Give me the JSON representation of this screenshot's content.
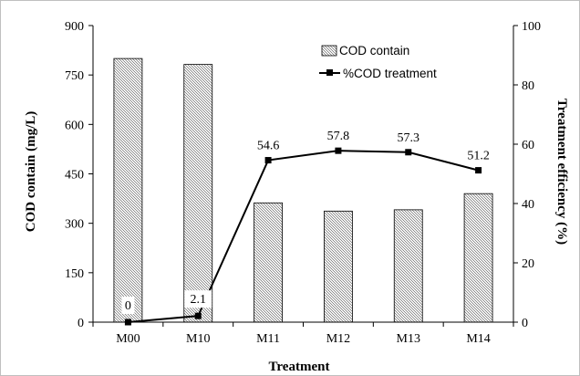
{
  "chart_data": {
    "type": "bar+line",
    "xlabel": "Treatment",
    "ylabel_left": "COD contain (mg/L)",
    "ylabel_right": "Treatment efficiency (%)",
    "categories": [
      "M00",
      "M10",
      "M11",
      "M12",
      "M13",
      "M14"
    ],
    "ylim_left": [
      0,
      900
    ],
    "yticks_left": [
      "0",
      "150",
      "300",
      "450",
      "600",
      "750",
      "900"
    ],
    "ylim_right": [
      0,
      100
    ],
    "yticks_right": [
      "0",
      "20",
      "40",
      "60",
      "80",
      "100"
    ],
    "grid": false,
    "legend_position": "top-right",
    "series": [
      {
        "name": "COD contain",
        "type": "bar",
        "axis": "left",
        "values": [
          800,
          782,
          362,
          337,
          341,
          390
        ]
      },
      {
        "name": "%COD treatment",
        "type": "line",
        "axis": "right",
        "values": [
          0,
          2.1,
          54.6,
          57.8,
          57.3,
          51.2
        ],
        "labels": [
          "0",
          "2.1",
          "54.6",
          "57.8",
          "57.3",
          "51.2"
        ]
      }
    ]
  }
}
